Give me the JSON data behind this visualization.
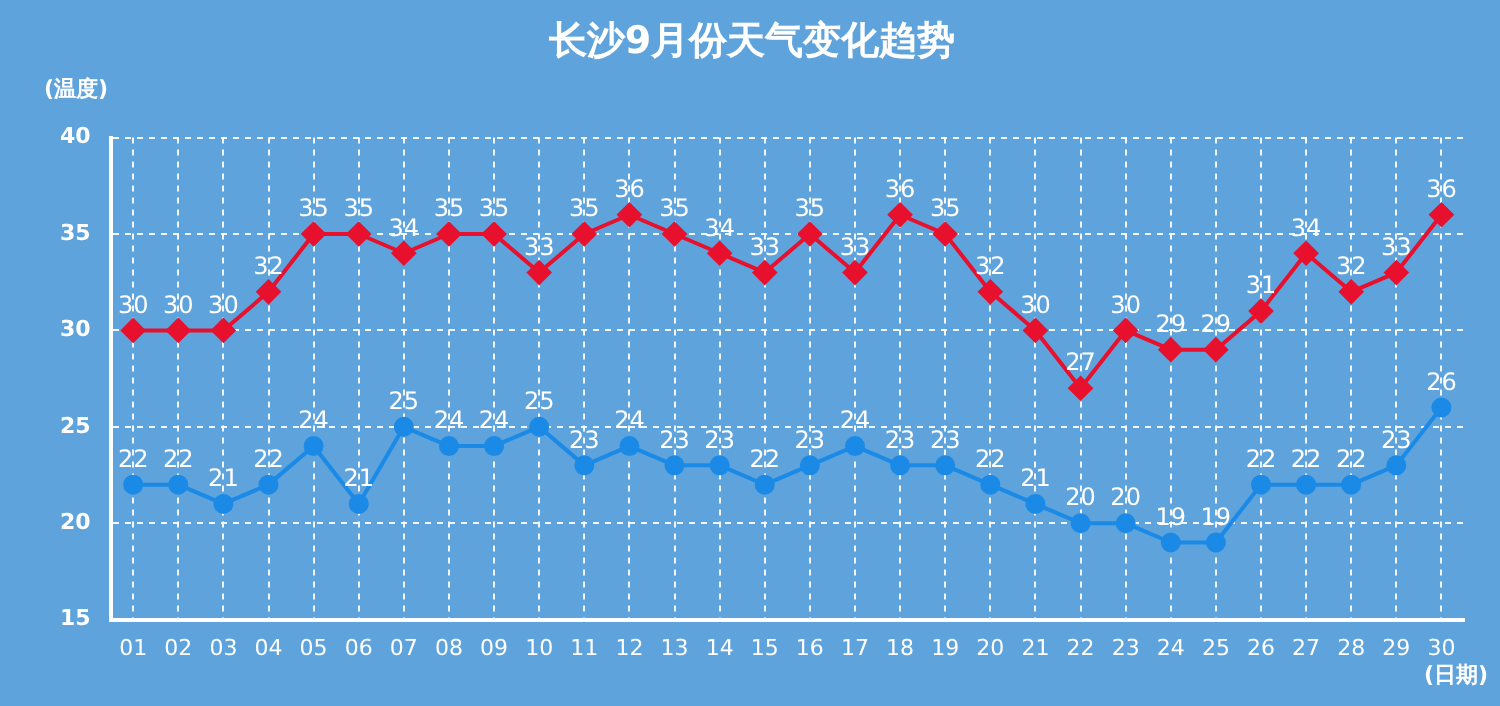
{
  "chart_data": {
    "type": "line",
    "title": "长沙9月份天气变化趋势",
    "xlabel": "(日期)",
    "ylabel": "(温度)",
    "categories": [
      "01",
      "02",
      "03",
      "04",
      "05",
      "06",
      "07",
      "08",
      "09",
      "10",
      "11",
      "12",
      "13",
      "14",
      "15",
      "16",
      "17",
      "18",
      "19",
      "20",
      "21",
      "22",
      "23",
      "24",
      "25",
      "26",
      "27",
      "28",
      "29",
      "30"
    ],
    "series": [
      {
        "color": "#e8112d",
        "marker": "diamond",
        "values": [
          30,
          30,
          30,
          32,
          35,
          35,
          34,
          35,
          35,
          33,
          35,
          36,
          35,
          34,
          33,
          35,
          33,
          36,
          35,
          32,
          30,
          27,
          30,
          29,
          29,
          31,
          34,
          32,
          33,
          36
        ]
      },
      {
        "color": "#1a8ae6",
        "marker": "circle",
        "values": [
          22,
          22,
          21,
          22,
          24,
          21,
          25,
          24,
          24,
          25,
          23,
          24,
          23,
          23,
          22,
          23,
          24,
          23,
          23,
          22,
          21,
          20,
          20,
          19,
          19,
          22,
          22,
          22,
          23,
          26
        ]
      }
    ],
    "ylim": [
      15,
      40
    ],
    "yticks": [
      15,
      20,
      25,
      30,
      35,
      40
    ],
    "grid": true,
    "legend": false,
    "data_labels": true,
    "line_style": "solid"
  }
}
